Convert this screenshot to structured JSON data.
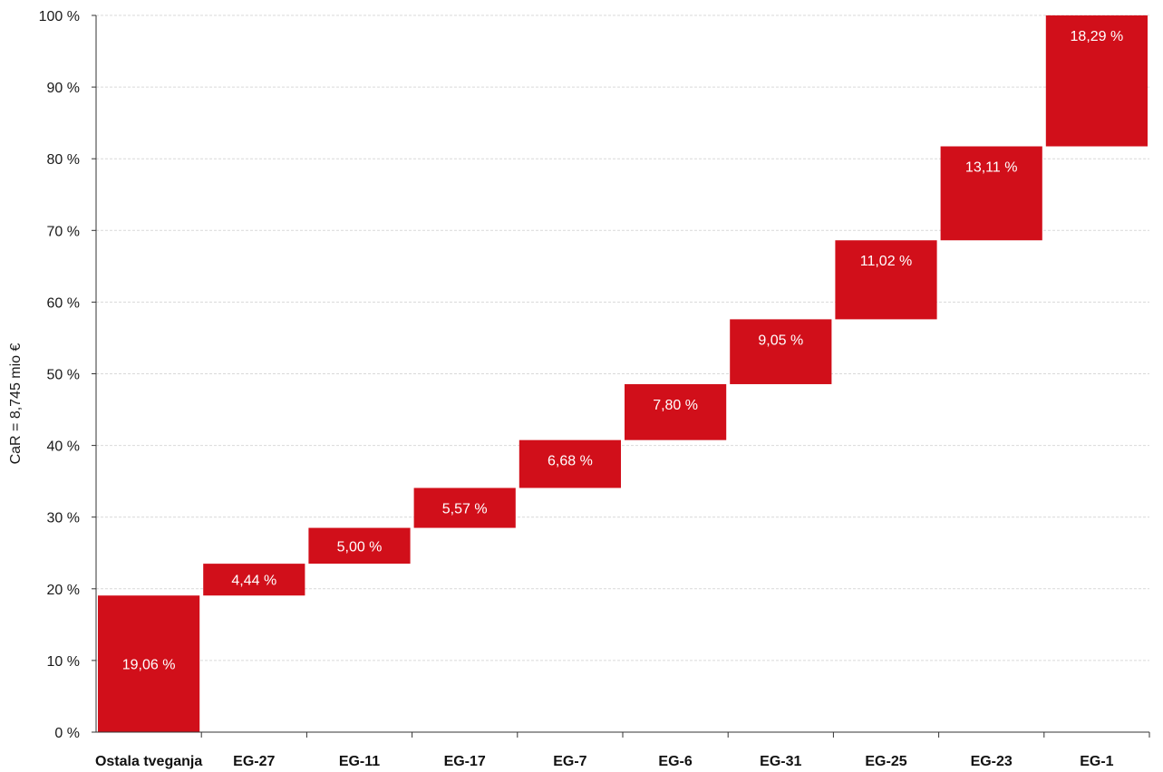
{
  "chart_data": {
    "type": "bar",
    "subtype": "waterfall-cumulative",
    "ylabel": "CaR = 8,745 mio €",
    "ylim": [
      0,
      100
    ],
    "y_ticks": [
      0,
      10,
      20,
      30,
      40,
      50,
      60,
      70,
      80,
      90,
      100
    ],
    "y_tick_labels": [
      "0 %",
      "10 %",
      "20 %",
      "30 %",
      "40 %",
      "50 %",
      "60 %",
      "70 %",
      "80 %",
      "90 %",
      "100 %"
    ],
    "grid": true,
    "categories": [
      "Ostala tveganja",
      "EG-27",
      "EG-11",
      "EG-17",
      "EG-7",
      "EG-6",
      "EG-31",
      "EG-25",
      "EG-23",
      "EG-1"
    ],
    "values": [
      19.06,
      4.44,
      5.0,
      5.57,
      6.68,
      7.8,
      9.05,
      11.02,
      13.11,
      18.29
    ],
    "value_labels": [
      "19,06 %",
      "4,44 %",
      "5,00 %",
      "5,57 %",
      "6,68 %",
      "7,80 %",
      "9,05 %",
      "11,02 %",
      "13,11 %",
      "18,29 %"
    ],
    "bar_color": "#d10f1a",
    "gridline_color": "#d9d9d9"
  }
}
